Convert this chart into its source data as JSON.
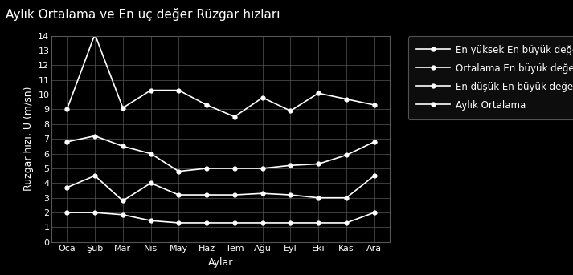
{
  "title": "Aylık Ortalama ve En uç değer Rüzgar hızları",
  "xlabel": "Aylar",
  "ylabel": "Rüzgar hızı, U (m/sn)",
  "months": [
    "Oca",
    "Şub",
    "Mar",
    "Nis",
    "May",
    "Haz",
    "Tem",
    "Ağu",
    "Eyl",
    "Eki",
    "Kas",
    "Ara"
  ],
  "en_yuksek": [
    9.0,
    14.1,
    9.1,
    10.3,
    10.3,
    9.3,
    8.5,
    9.8,
    8.9,
    10.1,
    9.7,
    9.3
  ],
  "ortalama_en_buyuk": [
    6.8,
    7.2,
    6.5,
    6.0,
    4.8,
    5.0,
    5.0,
    5.0,
    5.2,
    5.3,
    5.9,
    6.8
  ],
  "en_dusuk": [
    3.7,
    4.5,
    2.8,
    4.0,
    3.2,
    3.2,
    3.2,
    3.3,
    3.2,
    3.0,
    3.0,
    4.5
  ],
  "aylik_ortalama": [
    2.0,
    2.0,
    1.85,
    1.45,
    1.3,
    1.3,
    1.3,
    1.3,
    1.3,
    1.3,
    1.3,
    2.0
  ],
  "ylim": [
    0,
    14
  ],
  "yticks": [
    0,
    1,
    2,
    3,
    4,
    5,
    6,
    7,
    8,
    9,
    10,
    11,
    12,
    13,
    14
  ],
  "bg_color": "#000000",
  "line_color": "#ffffff",
  "grid_color": "#555555",
  "legend_labels": [
    "En yüksek En büyük değer",
    "Ortalama En büyük değer",
    "En düşük En büyük değer",
    "Aylık Ortalama"
  ],
  "text_color": "#ffffff",
  "title_fontsize": 11,
  "label_fontsize": 9,
  "tick_fontsize": 8,
  "legend_fontsize": 8.5
}
